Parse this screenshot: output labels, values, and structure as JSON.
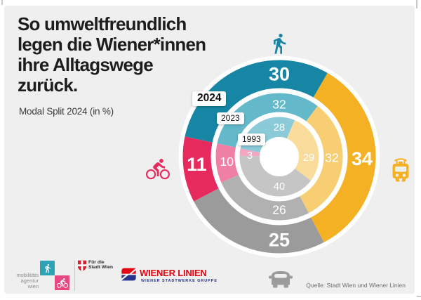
{
  "page": {
    "background": "#EFEFEF"
  },
  "header": {
    "title_lines": [
      "So umweltfreundlich",
      "legen die Wiener*innen",
      "ihre Alltagswege",
      "zurück."
    ],
    "subtitle": "Modal Split 2024 (in %)"
  },
  "chart_data": {
    "type": "donut",
    "title": "Modal Split 2024 (in %)",
    "unit": "%",
    "start_angle_deg": -78,
    "legend_position": "icons at top/right/bottom/left of rings",
    "modes": [
      {
        "id": "walk",
        "icon": "pedestrian-icon",
        "position": "top",
        "colors": [
          "#1686A4",
          "#63B9CA",
          "#8BCBD9"
        ]
      },
      {
        "id": "public-transport",
        "icon": "tram-icon",
        "position": "right",
        "colors": [
          "#F5B124",
          "#F8CE72",
          "#F9DC9C"
        ]
      },
      {
        "id": "car",
        "icon": "car-icon",
        "position": "bottom",
        "colors": [
          "#9B9B9B",
          "#B1B1B1",
          "#C5C5C5"
        ]
      },
      {
        "id": "bike",
        "icon": "bike-icon",
        "position": "left",
        "colors": [
          "#E62A5D",
          "#EF7FA4",
          "#F3A6C0"
        ]
      }
    ],
    "rings": [
      {
        "year": "2024",
        "values": [
          30,
          34,
          25,
          11
        ]
      },
      {
        "year": "2023",
        "values": [
          32,
          32,
          26,
          10
        ]
      },
      {
        "year": "1993",
        "values": [
          28,
          29,
          40,
          3
        ]
      }
    ]
  },
  "footer": {
    "mobilitaetsagentur_lines": [
      "mobilitäts",
      "agentur",
      "wien"
    ],
    "stadt_wien_lines": [
      "Für die",
      "Stadt Wien"
    ],
    "wiener_linien": {
      "title": "WIENER LINIEN",
      "subtitle": "WIENER STADTWERKE GRUPPE"
    },
    "source": "Quelle: Stadt Wien und Wiener Linien"
  }
}
